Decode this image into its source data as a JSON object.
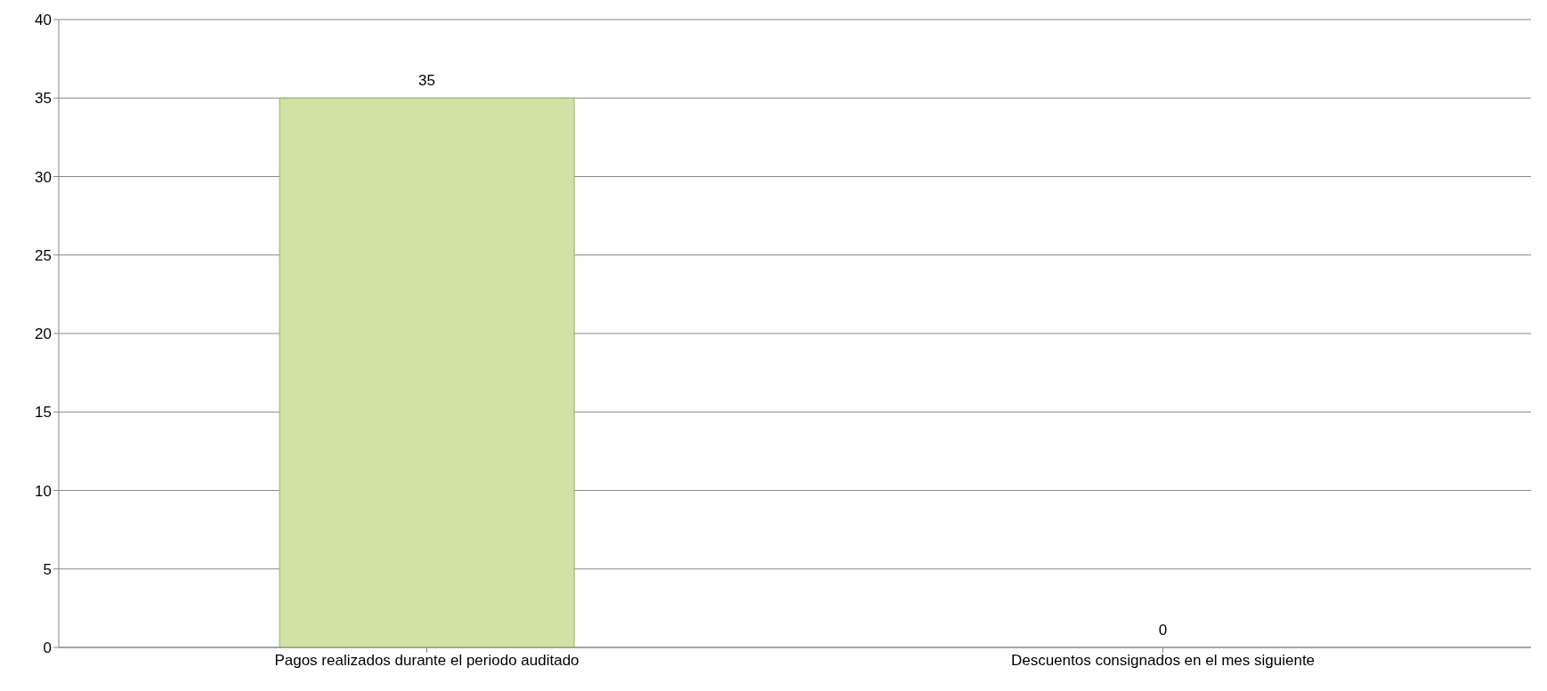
{
  "chart_data": {
    "type": "bar",
    "categories": [
      "Pagos realizados durante el periodo auditado",
      "Descuentos consignados en el mes siguiente"
    ],
    "values": [
      35,
      0
    ],
    "color": "#d0e2a6",
    "ylim": [
      0,
      40
    ],
    "yticks": [
      0,
      5,
      10,
      15,
      20,
      25,
      30,
      35,
      40
    ],
    "grid": "y",
    "data_labels": true
  }
}
